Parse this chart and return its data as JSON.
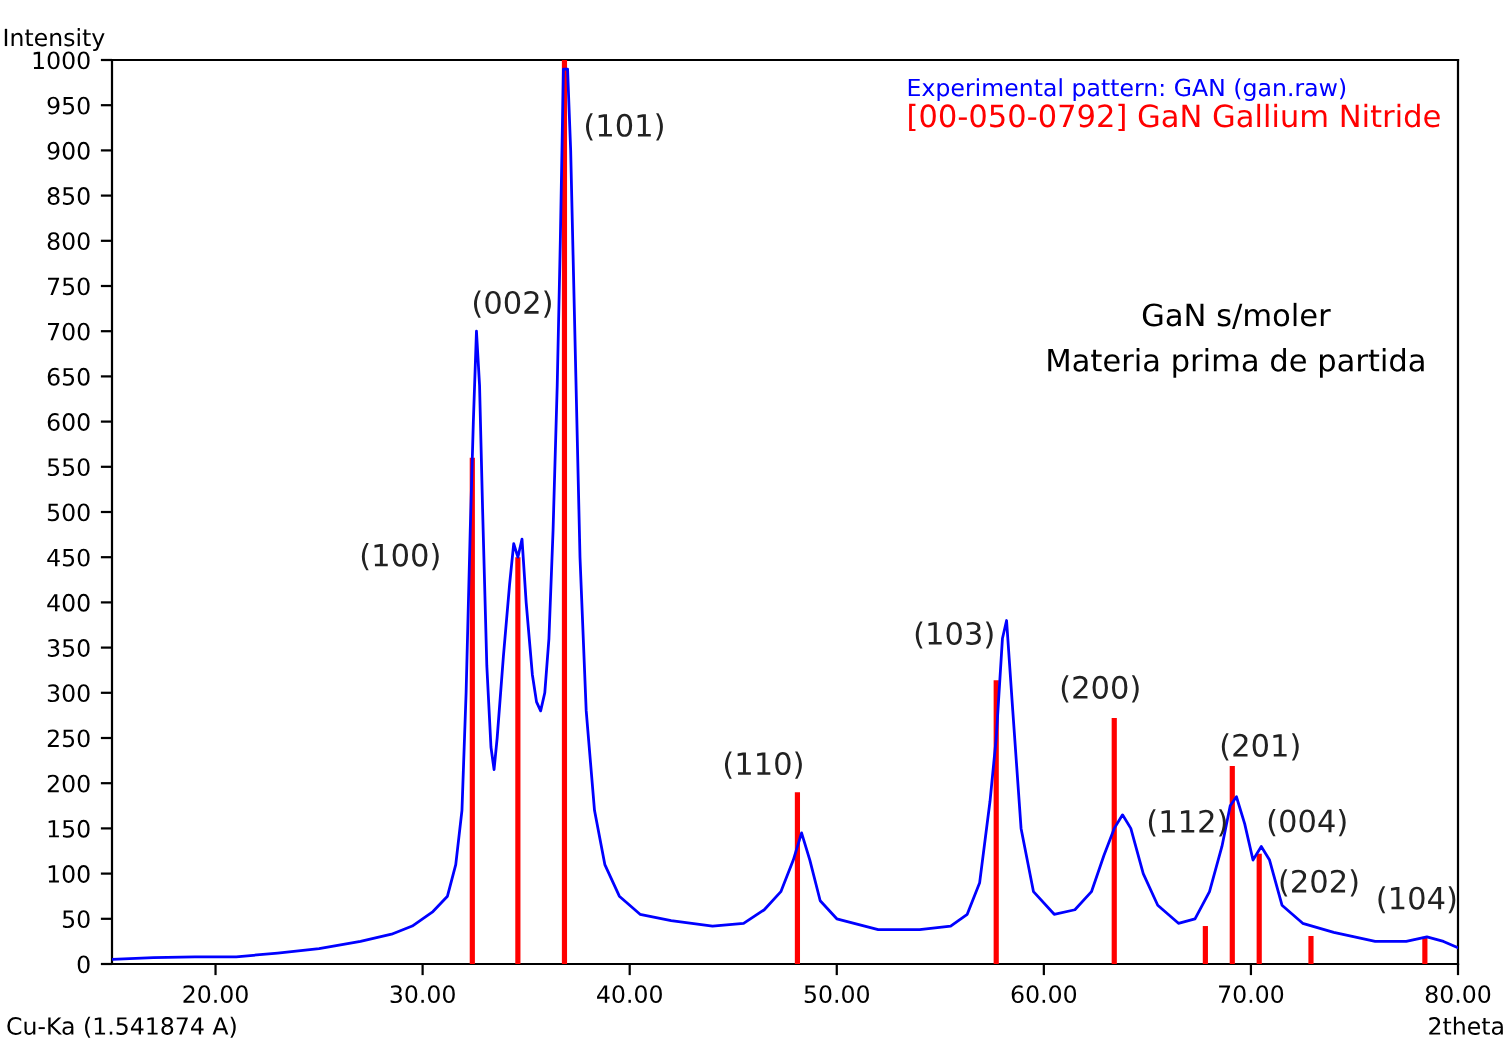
{
  "chart_data": {
    "type": "line",
    "xlabel": "2theta",
    "ylabel": "Intensity",
    "xlim": [
      15,
      80
    ],
    "ylim": [
      0,
      1000
    ],
    "xticks": [
      {
        "value": 20,
        "label": "20.00"
      },
      {
        "value": 30,
        "label": "30.00"
      },
      {
        "value": 40,
        "label": "40.00"
      },
      {
        "value": 50,
        "label": "50.00"
      },
      {
        "value": 60,
        "label": "60.00"
      },
      {
        "value": 70,
        "label": "70.00"
      },
      {
        "value": 80,
        "label": "80.00"
      }
    ],
    "yticks": [
      0,
      50,
      100,
      150,
      200,
      250,
      300,
      350,
      400,
      450,
      500,
      550,
      600,
      650,
      700,
      750,
      800,
      850,
      900,
      950,
      1000
    ],
    "grid": false,
    "legend": "top right",
    "marker": "none",
    "line_style": "solid",
    "series": [
      {
        "name": "Experimental pattern: GAN (gan.raw)",
        "color": "#0000ff",
        "x": [
          15,
          17,
          19,
          21,
          23,
          25,
          27,
          28.5,
          29.5,
          30.5,
          31.2,
          31.6,
          31.9,
          32.1,
          32.3,
          32.45,
          32.6,
          32.75,
          32.9,
          33.1,
          33.3,
          33.45,
          33.6,
          33.9,
          34.2,
          34.4,
          34.6,
          34.8,
          35.0,
          35.3,
          35.5,
          35.7,
          35.9,
          36.1,
          36.3,
          36.5,
          36.65,
          36.8,
          37.0,
          37.15,
          37.4,
          37.6,
          37.9,
          38.3,
          38.8,
          39.5,
          40.5,
          42,
          44,
          45.5,
          46.5,
          47.3,
          47.9,
          48.3,
          48.7,
          49.2,
          50,
          52,
          54,
          55.5,
          56.3,
          56.9,
          57.4,
          57.7,
          58,
          58.2,
          58.5,
          58.9,
          59.5,
          60.5,
          61.5,
          62.3,
          62.9,
          63.4,
          63.8,
          64.2,
          64.8,
          65.5,
          66.5,
          67.3,
          68,
          68.6,
          69.0,
          69.3,
          69.7,
          70.1,
          70.5,
          70.9,
          71.5,
          72.5,
          74,
          76,
          77.5,
          78.5,
          79.3,
          80
        ],
        "values": [
          5,
          7,
          8,
          8,
          12,
          17,
          25,
          33,
          42,
          58,
          75,
          110,
          170,
          300,
          480,
          600,
          700,
          640,
          500,
          330,
          240,
          215,
          250,
          340,
          420,
          465,
          450,
          470,
          400,
          320,
          290,
          280,
          300,
          360,
          480,
          640,
          800,
          990,
          990,
          900,
          650,
          450,
          280,
          170,
          110,
          75,
          55,
          48,
          42,
          45,
          60,
          80,
          115,
          145,
          115,
          70,
          50,
          38,
          38,
          42,
          55,
          90,
          180,
          250,
          360,
          380,
          280,
          150,
          80,
          55,
          60,
          80,
          120,
          150,
          165,
          150,
          100,
          65,
          45,
          50,
          80,
          130,
          175,
          185,
          155,
          115,
          130,
          115,
          65,
          45,
          35,
          25,
          25,
          30,
          25,
          18
        ]
      },
      {
        "name": "[00-050-0792] GaN Gallium Nitride",
        "type": "bar",
        "color": "#ff0000",
        "x": [
          32.4,
          34.6,
          36.85,
          48.1,
          57.7,
          63.4,
          67.8,
          69.1,
          70.4,
          72.9,
          78.4
        ],
        "values": [
          560,
          450,
          1000,
          190,
          314,
          272,
          42,
          219,
          122,
          31,
          30
        ]
      }
    ],
    "annotations": [
      {
        "text": "(100)",
        "x": 32.4,
        "y": 560
      },
      {
        "text": "(002)",
        "x": 32.6,
        "y": 700
      },
      {
        "text": "(101)",
        "x": 36.85,
        "y": 1000
      },
      {
        "text": "(110)",
        "x": 48.1,
        "y": 190
      },
      {
        "text": "(103)",
        "x": 57.7,
        "y": 314
      },
      {
        "text": "(200)",
        "x": 63.4,
        "y": 272
      },
      {
        "text": "(112)",
        "x": 67.8,
        "y": 42
      },
      {
        "text": "(201)",
        "x": 69.1,
        "y": 219
      },
      {
        "text": "(004)",
        "x": 70.4,
        "y": 122
      },
      {
        "text": "(202)",
        "x": 72.9,
        "y": 31
      },
      {
        "text": "(104)",
        "x": 78.4,
        "y": 30
      },
      "GaN s/moler",
      "Materia prima de partida",
      "Cu-Ka (1.541874 A)"
    ]
  }
}
